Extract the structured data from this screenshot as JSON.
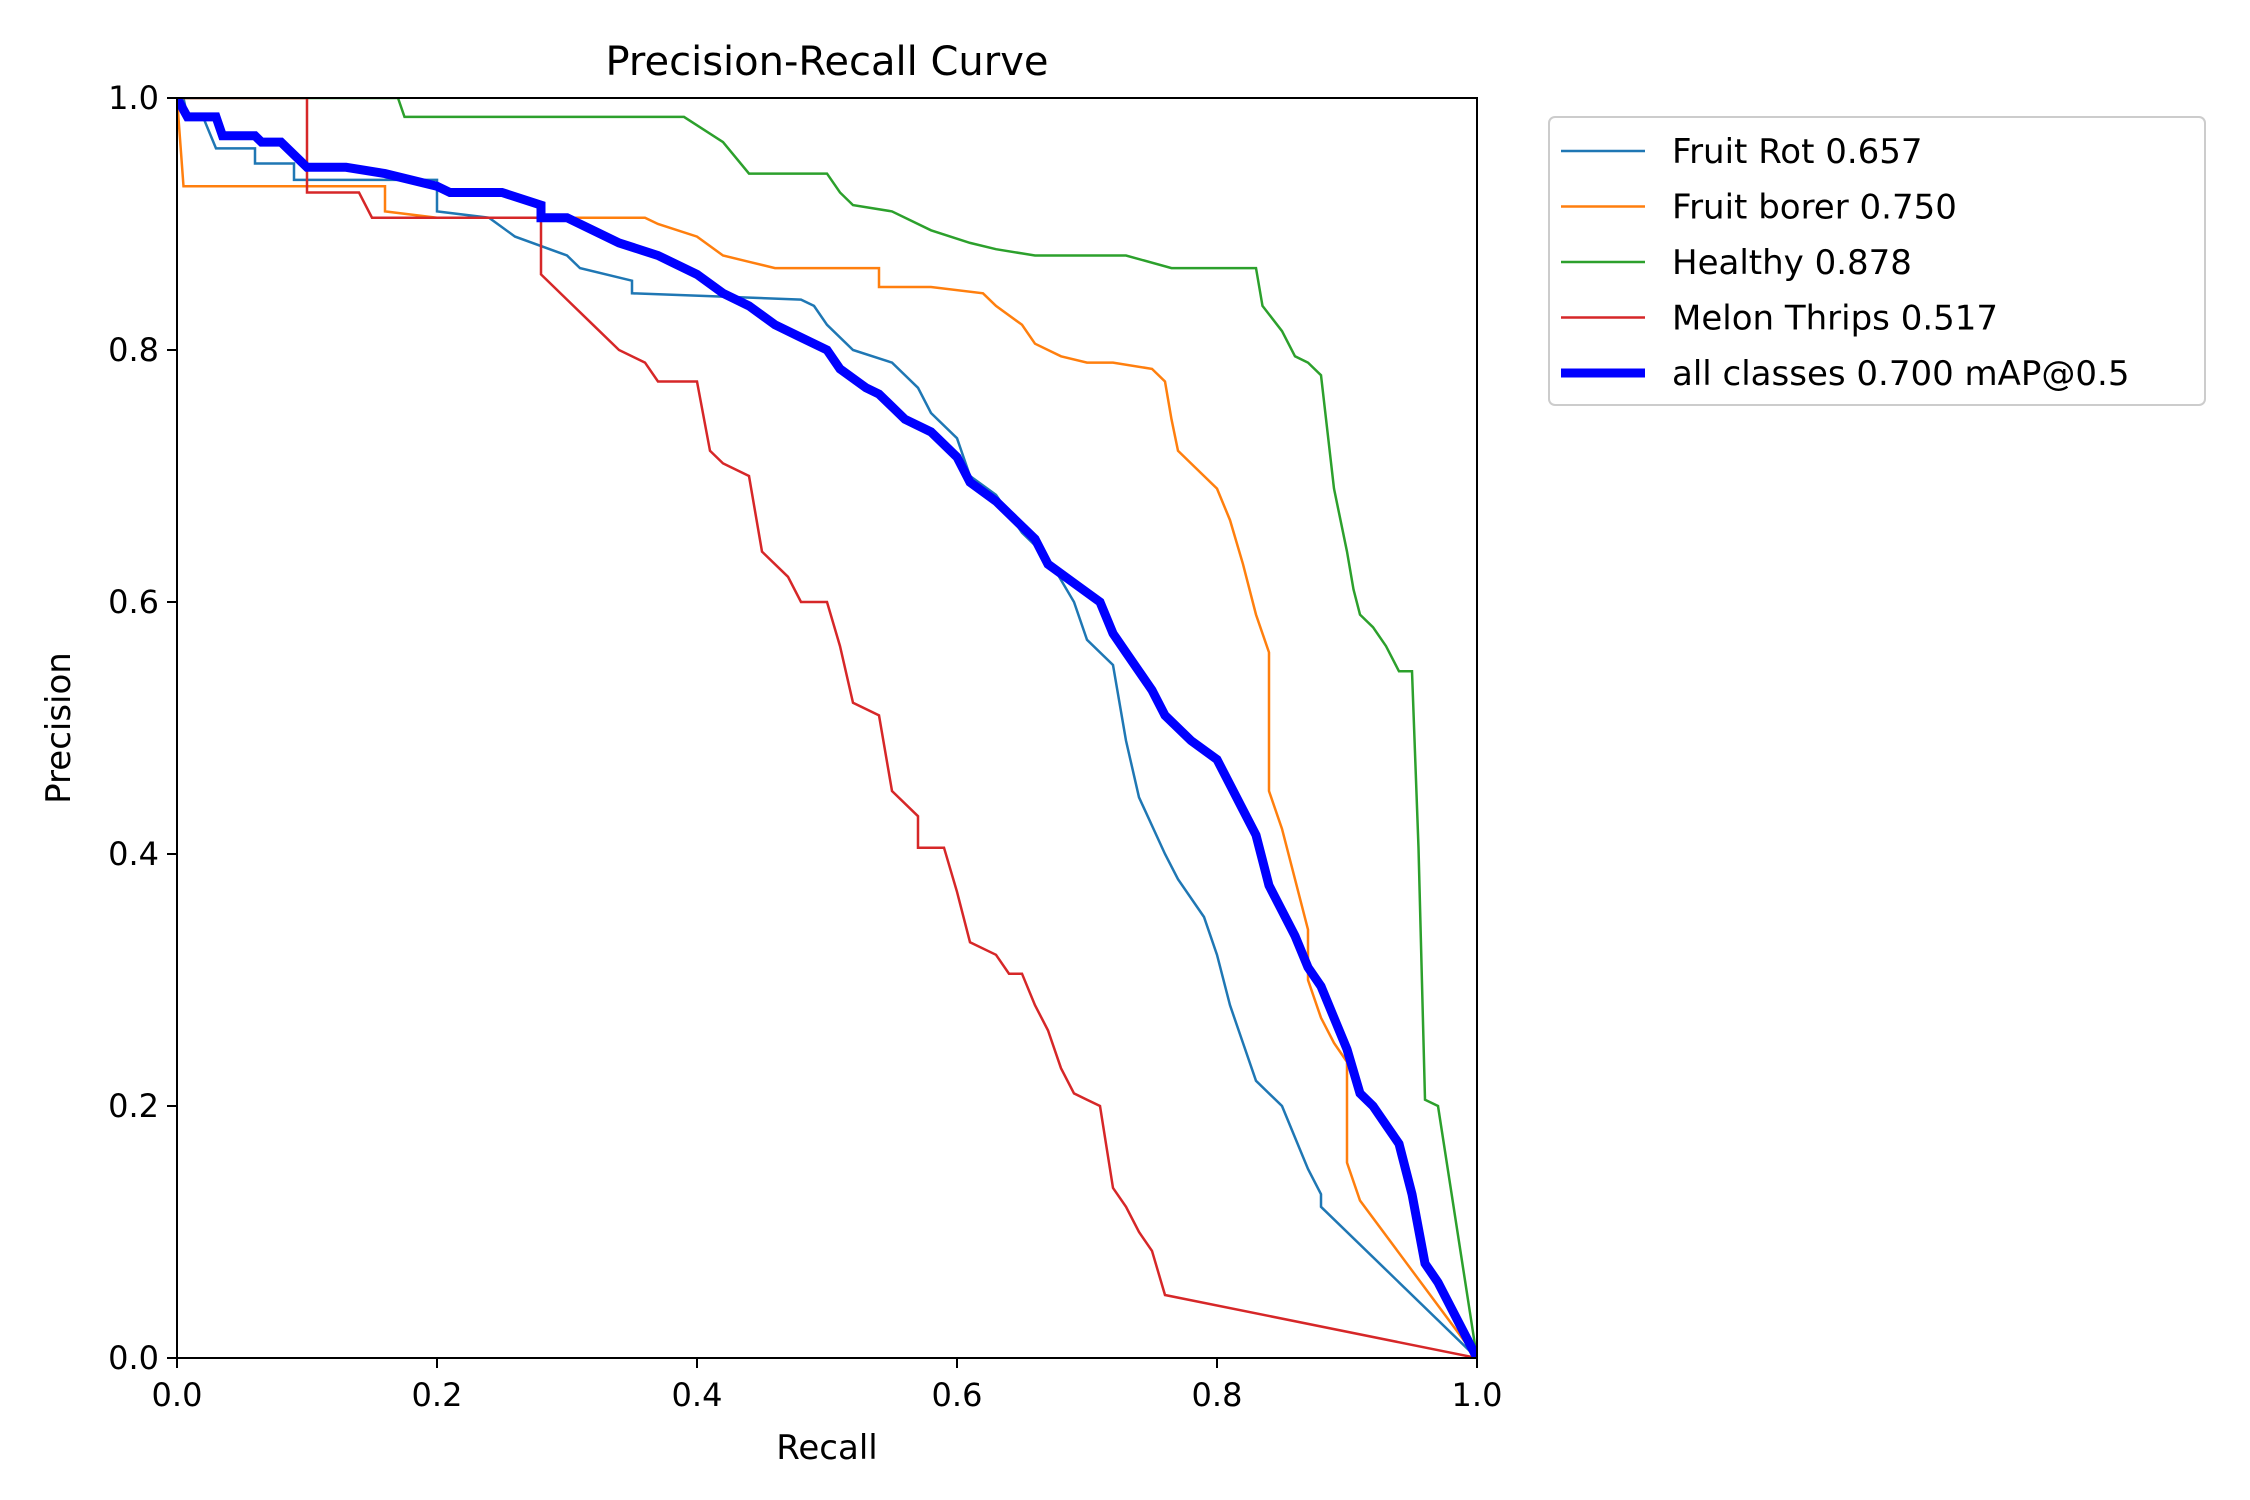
{
  "chart_data": {
    "type": "line",
    "title": "Precision-Recall Curve",
    "xlabel": "Recall",
    "ylabel": "Precision",
    "xlim": [
      0.0,
      1.0
    ],
    "ylim": [
      0.0,
      1.0
    ],
    "xticks": [
      "0.0",
      "0.2",
      "0.4",
      "0.6",
      "0.8",
      "1.0"
    ],
    "yticks": [
      "0.0",
      "0.2",
      "0.4",
      "0.6",
      "0.8",
      "1.0"
    ],
    "grid": false,
    "legend_position": "outside-upper-right",
    "series": [
      {
        "name": "Fruit Rot 0.657",
        "color": "#1f77b4",
        "points": [
          [
            0,
            1.0
          ],
          [
            0.005,
            1.0
          ],
          [
            0.008,
            0.985
          ],
          [
            0.02,
            0.985
          ],
          [
            0.03,
            0.96
          ],
          [
            0.06,
            0.96
          ],
          [
            0.06,
            0.948
          ],
          [
            0.09,
            0.948
          ],
          [
            0.09,
            0.935
          ],
          [
            0.2,
            0.935
          ],
          [
            0.2,
            0.91
          ],
          [
            0.24,
            0.905
          ],
          [
            0.26,
            0.89
          ],
          [
            0.3,
            0.875
          ],
          [
            0.31,
            0.865
          ],
          [
            0.35,
            0.855
          ],
          [
            0.35,
            0.845
          ],
          [
            0.48,
            0.84
          ],
          [
            0.49,
            0.835
          ],
          [
            0.5,
            0.82
          ],
          [
            0.52,
            0.8
          ],
          [
            0.55,
            0.79
          ],
          [
            0.57,
            0.77
          ],
          [
            0.58,
            0.75
          ],
          [
            0.6,
            0.73
          ],
          [
            0.61,
            0.7
          ],
          [
            0.63,
            0.685
          ],
          [
            0.65,
            0.655
          ],
          [
            0.67,
            0.635
          ],
          [
            0.69,
            0.6
          ],
          [
            0.7,
            0.57
          ],
          [
            0.72,
            0.55
          ],
          [
            0.73,
            0.49
          ],
          [
            0.74,
            0.445
          ],
          [
            0.76,
            0.4
          ],
          [
            0.77,
            0.38
          ],
          [
            0.79,
            0.35
          ],
          [
            0.8,
            0.32
          ],
          [
            0.81,
            0.28
          ],
          [
            0.82,
            0.25
          ],
          [
            0.83,
            0.22
          ],
          [
            0.85,
            0.2
          ],
          [
            0.86,
            0.175
          ],
          [
            0.87,
            0.15
          ],
          [
            0.88,
            0.13
          ],
          [
            0.88,
            0.12
          ],
          [
            1.0,
            0.0
          ]
        ]
      },
      {
        "name": "Fruit borer 0.750",
        "color": "#ff7f0e",
        "points": [
          [
            0,
            1.0
          ],
          [
            0.005,
            0.93
          ],
          [
            0.16,
            0.93
          ],
          [
            0.16,
            0.91
          ],
          [
            0.2,
            0.905
          ],
          [
            0.3,
            0.905
          ],
          [
            0.32,
            0.905
          ],
          [
            0.36,
            0.905
          ],
          [
            0.37,
            0.9
          ],
          [
            0.4,
            0.89
          ],
          [
            0.42,
            0.875
          ],
          [
            0.44,
            0.87
          ],
          [
            0.46,
            0.865
          ],
          [
            0.5,
            0.865
          ],
          [
            0.54,
            0.865
          ],
          [
            0.54,
            0.85
          ],
          [
            0.58,
            0.85
          ],
          [
            0.62,
            0.845
          ],
          [
            0.63,
            0.835
          ],
          [
            0.65,
            0.82
          ],
          [
            0.66,
            0.805
          ],
          [
            0.68,
            0.795
          ],
          [
            0.7,
            0.79
          ],
          [
            0.72,
            0.79
          ],
          [
            0.75,
            0.785
          ],
          [
            0.76,
            0.775
          ],
          [
            0.765,
            0.745
          ],
          [
            0.77,
            0.72
          ],
          [
            0.78,
            0.71
          ],
          [
            0.8,
            0.69
          ],
          [
            0.81,
            0.665
          ],
          [
            0.82,
            0.63
          ],
          [
            0.83,
            0.59
          ],
          [
            0.84,
            0.56
          ],
          [
            0.84,
            0.45
          ],
          [
            0.85,
            0.42
          ],
          [
            0.86,
            0.38
          ],
          [
            0.87,
            0.34
          ],
          [
            0.87,
            0.3
          ],
          [
            0.88,
            0.27
          ],
          [
            0.89,
            0.25
          ],
          [
            0.9,
            0.235
          ],
          [
            0.9,
            0.155
          ],
          [
            0.91,
            0.125
          ],
          [
            1.0,
            0.0
          ]
        ]
      },
      {
        "name": "Healthy 0.878",
        "color": "#2ca02c",
        "points": [
          [
            0,
            1.0
          ],
          [
            0.17,
            1.0
          ],
          [
            0.175,
            0.985
          ],
          [
            0.37,
            0.985
          ],
          [
            0.39,
            0.985
          ],
          [
            0.42,
            0.965
          ],
          [
            0.44,
            0.94
          ],
          [
            0.5,
            0.94
          ],
          [
            0.51,
            0.925
          ],
          [
            0.52,
            0.915
          ],
          [
            0.55,
            0.91
          ],
          [
            0.58,
            0.895
          ],
          [
            0.61,
            0.885
          ],
          [
            0.63,
            0.88
          ],
          [
            0.66,
            0.875
          ],
          [
            0.7,
            0.875
          ],
          [
            0.73,
            0.875
          ],
          [
            0.765,
            0.865
          ],
          [
            0.8,
            0.865
          ],
          [
            0.83,
            0.865
          ],
          [
            0.835,
            0.835
          ],
          [
            0.85,
            0.815
          ],
          [
            0.86,
            0.795
          ],
          [
            0.87,
            0.79
          ],
          [
            0.88,
            0.78
          ],
          [
            0.89,
            0.69
          ],
          [
            0.9,
            0.64
          ],
          [
            0.905,
            0.61
          ],
          [
            0.91,
            0.59
          ],
          [
            0.92,
            0.58
          ],
          [
            0.93,
            0.565
          ],
          [
            0.94,
            0.545
          ],
          [
            0.95,
            0.545
          ],
          [
            0.955,
            0.405
          ],
          [
            0.96,
            0.205
          ],
          [
            0.97,
            0.2
          ],
          [
            1.0,
            0.0
          ]
        ]
      },
      {
        "name": "Melon Thrips 0.517",
        "color": "#d62728",
        "points": [
          [
            0,
            1.0
          ],
          [
            0.1,
            1.0
          ],
          [
            0.1,
            0.925
          ],
          [
            0.14,
            0.925
          ],
          [
            0.15,
            0.905
          ],
          [
            0.25,
            0.905
          ],
          [
            0.28,
            0.905
          ],
          [
            0.28,
            0.86
          ],
          [
            0.3,
            0.84
          ],
          [
            0.32,
            0.82
          ],
          [
            0.34,
            0.8
          ],
          [
            0.36,
            0.79
          ],
          [
            0.37,
            0.775
          ],
          [
            0.4,
            0.775
          ],
          [
            0.41,
            0.72
          ],
          [
            0.42,
            0.71
          ],
          [
            0.44,
            0.7
          ],
          [
            0.45,
            0.64
          ],
          [
            0.47,
            0.62
          ],
          [
            0.48,
            0.6
          ],
          [
            0.5,
            0.6
          ],
          [
            0.51,
            0.565
          ],
          [
            0.52,
            0.52
          ],
          [
            0.54,
            0.51
          ],
          [
            0.55,
            0.45
          ],
          [
            0.57,
            0.43
          ],
          [
            0.57,
            0.405
          ],
          [
            0.59,
            0.405
          ],
          [
            0.6,
            0.37
          ],
          [
            0.61,
            0.33
          ],
          [
            0.63,
            0.32
          ],
          [
            0.64,
            0.305
          ],
          [
            0.65,
            0.305
          ],
          [
            0.66,
            0.28
          ],
          [
            0.67,
            0.26
          ],
          [
            0.68,
            0.23
          ],
          [
            0.69,
            0.21
          ],
          [
            0.7,
            0.205
          ],
          [
            0.71,
            0.2
          ],
          [
            0.72,
            0.135
          ],
          [
            0.73,
            0.12
          ],
          [
            0.74,
            0.1
          ],
          [
            0.75,
            0.085
          ],
          [
            0.76,
            0.05
          ],
          [
            1.0,
            0.0
          ]
        ]
      },
      {
        "name": "all classes 0.700 mAP@0.5",
        "color": "#0000ff",
        "points": [
          [
            0,
            1.0
          ],
          [
            0.008,
            0.985
          ],
          [
            0.03,
            0.985
          ],
          [
            0.035,
            0.97
          ],
          [
            0.06,
            0.97
          ],
          [
            0.065,
            0.965
          ],
          [
            0.08,
            0.965
          ],
          [
            0.1,
            0.945
          ],
          [
            0.13,
            0.945
          ],
          [
            0.16,
            0.94
          ],
          [
            0.2,
            0.93
          ],
          [
            0.21,
            0.925
          ],
          [
            0.25,
            0.925
          ],
          [
            0.28,
            0.915
          ],
          [
            0.28,
            0.905
          ],
          [
            0.3,
            0.905
          ],
          [
            0.32,
            0.895
          ],
          [
            0.34,
            0.885
          ],
          [
            0.37,
            0.875
          ],
          [
            0.38,
            0.87
          ],
          [
            0.4,
            0.86
          ],
          [
            0.42,
            0.845
          ],
          [
            0.44,
            0.835
          ],
          [
            0.46,
            0.82
          ],
          [
            0.48,
            0.81
          ],
          [
            0.5,
            0.8
          ],
          [
            0.51,
            0.785
          ],
          [
            0.53,
            0.77
          ],
          [
            0.54,
            0.765
          ],
          [
            0.56,
            0.745
          ],
          [
            0.58,
            0.735
          ],
          [
            0.6,
            0.715
          ],
          [
            0.61,
            0.695
          ],
          [
            0.63,
            0.68
          ],
          [
            0.64,
            0.67
          ],
          [
            0.66,
            0.65
          ],
          [
            0.67,
            0.63
          ],
          [
            0.69,
            0.615
          ],
          [
            0.71,
            0.6
          ],
          [
            0.72,
            0.575
          ],
          [
            0.73,
            0.56
          ],
          [
            0.74,
            0.545
          ],
          [
            0.75,
            0.53
          ],
          [
            0.76,
            0.51
          ],
          [
            0.78,
            0.49
          ],
          [
            0.8,
            0.475
          ],
          [
            0.81,
            0.455
          ],
          [
            0.82,
            0.435
          ],
          [
            0.83,
            0.415
          ],
          [
            0.835,
            0.395
          ],
          [
            0.84,
            0.375
          ],
          [
            0.85,
            0.355
          ],
          [
            0.86,
            0.335
          ],
          [
            0.87,
            0.31
          ],
          [
            0.88,
            0.295
          ],
          [
            0.89,
            0.27
          ],
          [
            0.9,
            0.245
          ],
          [
            0.91,
            0.21
          ],
          [
            0.92,
            0.2
          ],
          [
            0.93,
            0.185
          ],
          [
            0.94,
            0.17
          ],
          [
            0.95,
            0.13
          ],
          [
            0.96,
            0.075
          ],
          [
            0.97,
            0.06
          ],
          [
            1.0,
            0.0
          ]
        ]
      }
    ]
  }
}
